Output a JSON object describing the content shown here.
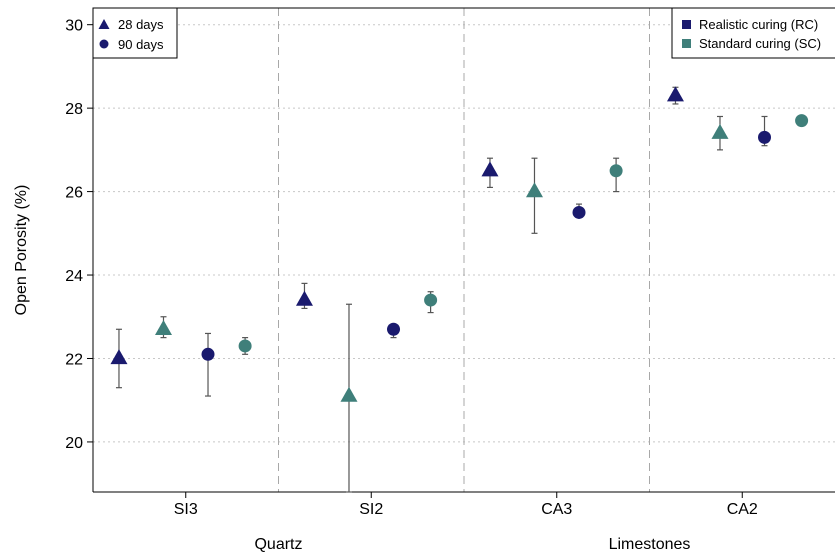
{
  "chart_data": {
    "type": "scatter",
    "ylabel": "Open Porosity (%)",
    "ylim": [
      18.8,
      30.4
    ],
    "yticks": [
      20,
      22,
      24,
      26,
      28,
      30
    ],
    "grid": "horizontal-dotted",
    "categories": [
      "SI3",
      "SI2",
      "CA3",
      "CA2"
    ],
    "groups": [
      {
        "label": "Quartz",
        "categories": [
          "SI3",
          "SI2"
        ]
      },
      {
        "label": "Limestones",
        "categories": [
          "CA3",
          "CA2"
        ]
      }
    ],
    "legend_age": {
      "placement": "top-left",
      "entries": [
        {
          "label": "28 days",
          "marker": "triangle"
        },
        {
          "label": "90 days",
          "marker": "circle"
        }
      ]
    },
    "legend_curing": {
      "placement": "top-right",
      "entries": [
        {
          "label": "Realistic curing (RC)",
          "color": "#1a1a6e"
        },
        {
          "label": "Standard curing (SC)",
          "color": "#3f7f7a"
        }
      ]
    },
    "series": [
      {
        "age": "28 days",
        "curing": "RC",
        "marker": "triangle",
        "color": "#1a1a6e",
        "offset": -0.36,
        "values": [
          22.0,
          23.4,
          26.5,
          28.3
        ],
        "err_low": [
          21.3,
          23.2,
          26.1,
          28.1
        ],
        "err_high": [
          22.7,
          23.8,
          26.8,
          28.5
        ]
      },
      {
        "age": "28 days",
        "curing": "SC",
        "marker": "triangle",
        "color": "#3f7f7a",
        "offset": -0.12,
        "values": [
          22.7,
          21.1,
          26.0,
          27.4
        ],
        "err_low": [
          22.5,
          18.8,
          25.0,
          27.0
        ],
        "err_high": [
          23.0,
          23.3,
          26.8,
          27.8
        ]
      },
      {
        "age": "90 days",
        "curing": "RC",
        "marker": "circle",
        "color": "#1a1a6e",
        "offset": 0.12,
        "values": [
          22.1,
          22.7,
          25.5,
          27.3
        ],
        "err_low": [
          21.1,
          22.5,
          25.4,
          27.1
        ],
        "err_high": [
          22.6,
          22.8,
          25.7,
          27.8
        ]
      },
      {
        "age": "90 days",
        "curing": "SC",
        "marker": "circle",
        "color": "#3f7f7a",
        "offset": 0.32,
        "values": [
          22.3,
          23.4,
          26.5,
          27.7
        ],
        "err_low": [
          22.1,
          23.1,
          26.0,
          27.6
        ],
        "err_high": [
          22.5,
          23.6,
          26.8,
          27.8
        ]
      }
    ]
  }
}
